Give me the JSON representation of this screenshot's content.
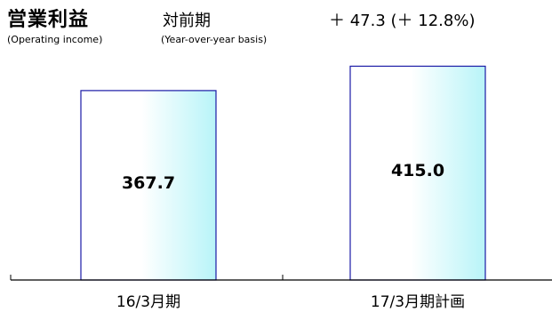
{
  "header": {
    "title": "営業利益",
    "title_en": "(Operating income)",
    "basis": "対前期",
    "basis_en": "(Year-over-year basis)",
    "change": "＋ 47.3 (＋ 12.8%)"
  },
  "colors": {
    "bar_fill_light": "#ffffff",
    "bar_fill_dark": "#b8f4f8",
    "bar_stroke": "#1a1aa6",
    "axis": "#000000"
  },
  "chart_data": {
    "type": "bar",
    "title": "営業利益",
    "categories": [
      "16/3月期",
      "17/3月期計画"
    ],
    "values": [
      367.7,
      415.0
    ],
    "value_labels": [
      "367.7",
      "415.0"
    ],
    "xlabel": "",
    "ylabel": "",
    "ylim": [
      0,
      440
    ],
    "grid": false,
    "legend": "none"
  }
}
